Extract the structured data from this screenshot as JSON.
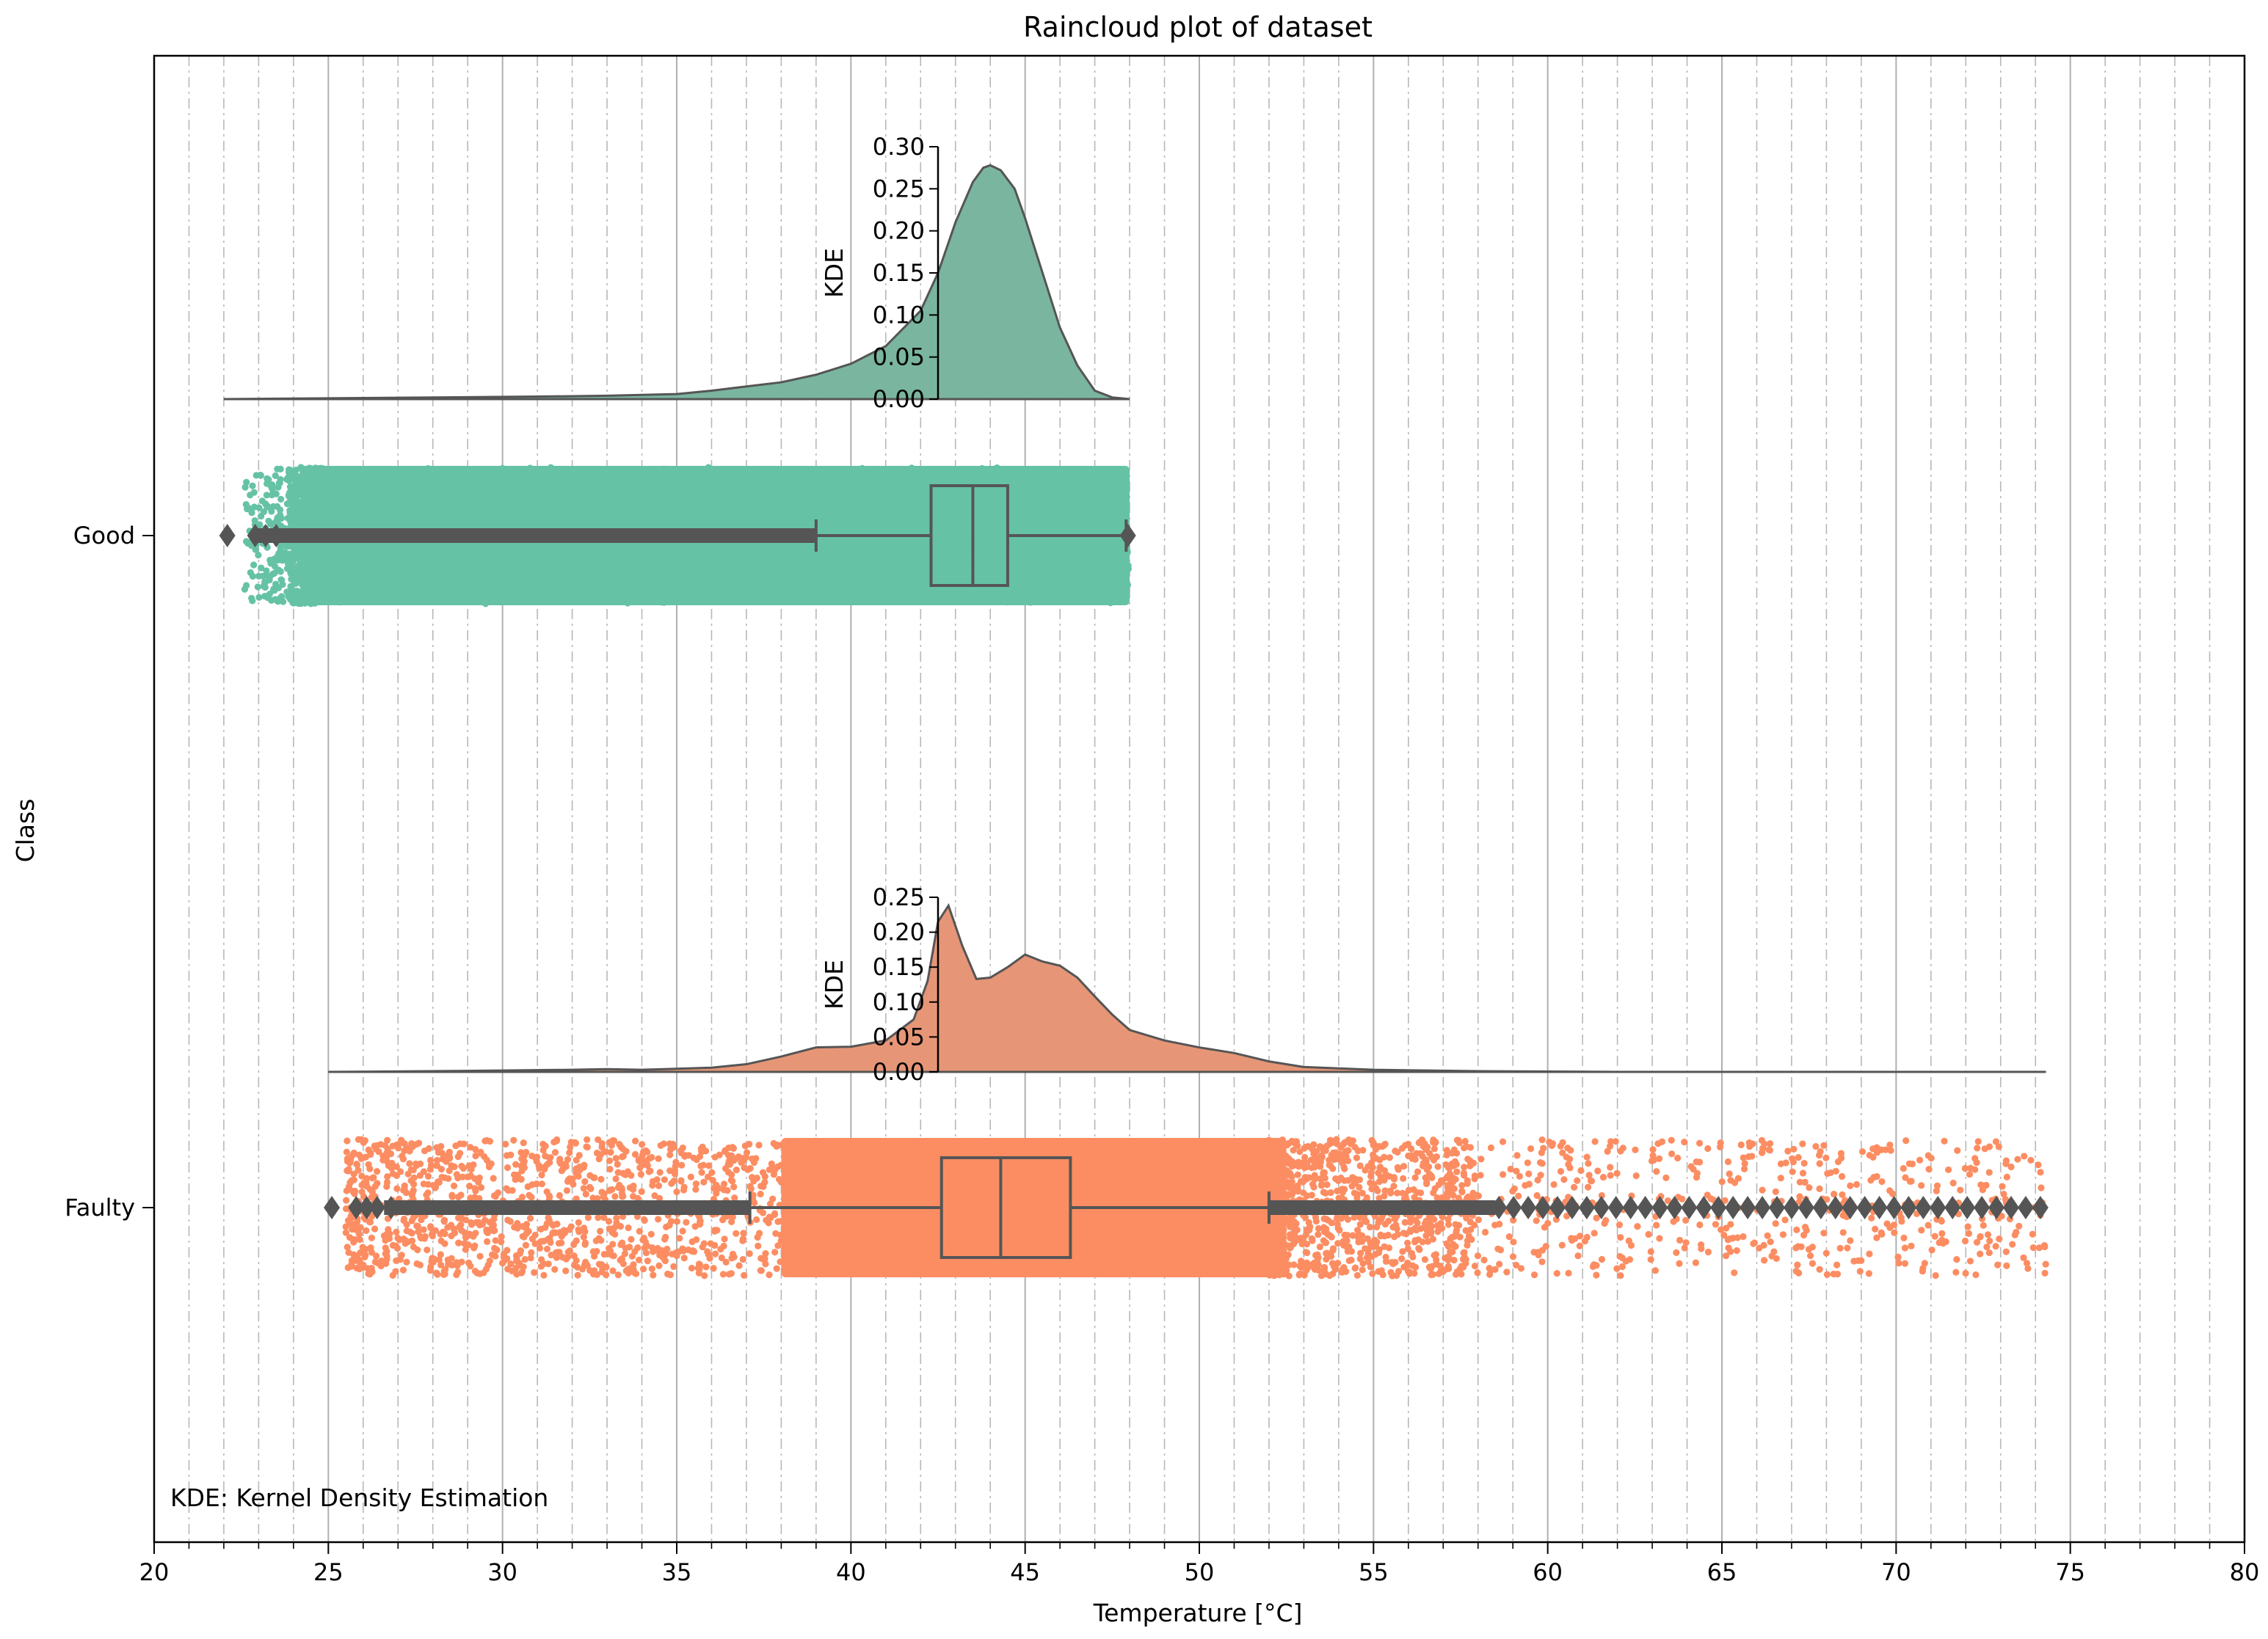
{
  "chart_data": {
    "type": "raincloud",
    "title": "Raincloud plot of dataset",
    "xlabel": "Temperature [°C]",
    "ylabel": "Class",
    "xlim": [
      20,
      80
    ],
    "x_major_ticks": [
      20,
      25,
      30,
      35,
      40,
      45,
      50,
      55,
      60,
      65,
      70,
      75,
      80
    ],
    "x_tick_labels": [
      "20",
      "25",
      "30",
      "35",
      "40",
      "45",
      "50",
      "55",
      "60",
      "65",
      "70",
      "75",
      "80"
    ],
    "x_minor_step": 1,
    "grid": true,
    "annotation": "KDE: Kernel Density Estimation",
    "kde_ylabel": "KDE",
    "categories": [
      "Good",
      "Faulty"
    ],
    "series": [
      {
        "name": "Good",
        "color": "#66c2a5",
        "kde_color": "#7ab59f",
        "range": [
          22,
          48
        ],
        "box": {
          "whisker_low": 39,
          "q1": 42.3,
          "median": 43.5,
          "q3": 44.5,
          "whisker_high": 47.9
        },
        "outlier_range": [
          22,
          39
        ],
        "cloud_range": [
          24.2,
          48
        ],
        "kde_ylim": [
          0,
          0.3
        ],
        "kde_ticks": [
          0.0,
          0.05,
          0.1,
          0.15,
          0.2,
          0.25,
          0.3
        ],
        "kde_tick_labels": [
          "0.00",
          "0.05",
          "0.10",
          "0.15",
          "0.20",
          "0.25",
          "0.30"
        ],
        "kde": {
          "x": [
            22,
            25,
            28,
            31,
            33,
            35,
            36,
            37,
            38,
            39,
            40,
            41,
            42,
            42.5,
            43,
            43.5,
            43.8,
            44,
            44.3,
            44.7,
            45,
            45.5,
            46,
            46.5,
            47,
            47.5,
            48
          ],
          "y": [
            0.0,
            0.001,
            0.002,
            0.003,
            0.004,
            0.006,
            0.01,
            0.015,
            0.02,
            0.029,
            0.042,
            0.063,
            0.105,
            0.15,
            0.21,
            0.258,
            0.275,
            0.278,
            0.272,
            0.25,
            0.215,
            0.15,
            0.085,
            0.04,
            0.01,
            0.002,
            0.0
          ]
        }
      },
      {
        "name": "Faulty",
        "color": "#fc8d62",
        "kde_color": "#e69677",
        "range": [
          25,
          74.3
        ],
        "box": {
          "whisker_low": 37.1,
          "q1": 42.6,
          "median": 44.3,
          "q3": 46.3,
          "whisker_high": 52
        },
        "outlier_range": [
          25,
          74.3
        ],
        "cloud_range": [
          25.5,
          74.3
        ],
        "kde_ylim": [
          0,
          0.25
        ],
        "kde_ticks": [
          0.0,
          0.05,
          0.1,
          0.15,
          0.2,
          0.25
        ],
        "kde_tick_labels": [
          "0.00",
          "0.05",
          "0.10",
          "0.15",
          "0.20",
          "0.25"
        ],
        "kde": {
          "x": [
            25,
            28,
            30,
            32,
            33,
            34,
            36,
            37,
            38,
            39,
            40,
            41,
            41.8,
            42.2,
            42.5,
            42.8,
            43.2,
            43.6,
            44,
            44.5,
            45,
            45.5,
            46,
            46.5,
            47,
            47.5,
            48,
            49,
            50,
            51,
            52,
            53,
            55,
            58,
            62,
            68,
            74.3
          ],
          "y": [
            0.0,
            0.001,
            0.002,
            0.003,
            0.004,
            0.003,
            0.006,
            0.011,
            0.022,
            0.035,
            0.036,
            0.045,
            0.075,
            0.13,
            0.215,
            0.238,
            0.18,
            0.133,
            0.135,
            0.15,
            0.168,
            0.158,
            0.152,
            0.135,
            0.108,
            0.082,
            0.06,
            0.045,
            0.035,
            0.027,
            0.015,
            0.007,
            0.003,
            0.001,
            0.0,
            0.0,
            0.0
          ]
        }
      }
    ]
  }
}
